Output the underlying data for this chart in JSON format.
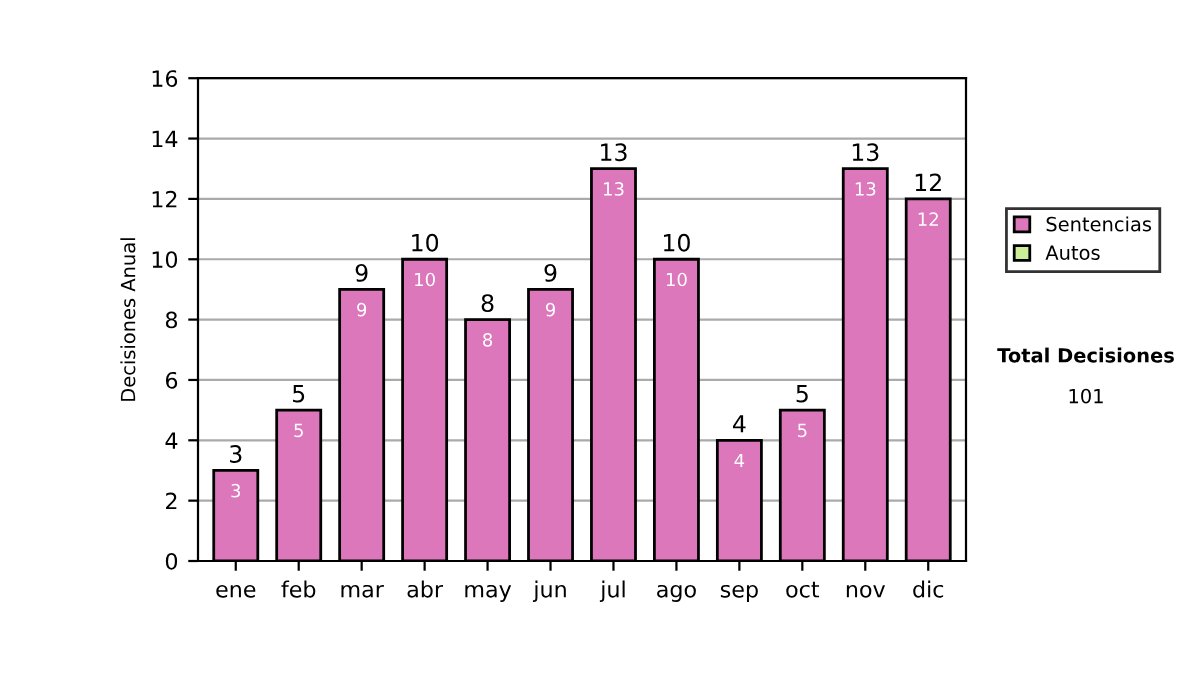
{
  "chart_data": {
    "type": "bar",
    "stacked": true,
    "ylabel": "Decisiones Anual",
    "categories": [
      "ene",
      "feb",
      "mar",
      "abr",
      "may",
      "jun",
      "jul",
      "ago",
      "sep",
      "oct",
      "nov",
      "dic"
    ],
    "series": [
      {
        "name": "Sentencias",
        "color": "#dd77bb",
        "values": [
          3,
          5,
          9,
          10,
          8,
          9,
          13,
          10,
          4,
          5,
          13,
          12
        ]
      },
      {
        "name": "Autos",
        "color": "#ccee99",
        "values": [
          null,
          null,
          null,
          null,
          null,
          null,
          null,
          null,
          null,
          null,
          null,
          null
        ]
      }
    ],
    "totals": [
      "3",
      "5",
      "9",
      "10",
      "8",
      "9",
      "13",
      "10",
      "4",
      "5",
      "13",
      "12"
    ],
    "data_labels": true,
    "ylim": [
      0,
      16
    ],
    "yticks": [
      0,
      2,
      4,
      6,
      8,
      10,
      12,
      14,
      16
    ],
    "grid": "y",
    "legend": "right",
    "annotations": [
      "Total Decisiones",
      "101"
    ]
  }
}
